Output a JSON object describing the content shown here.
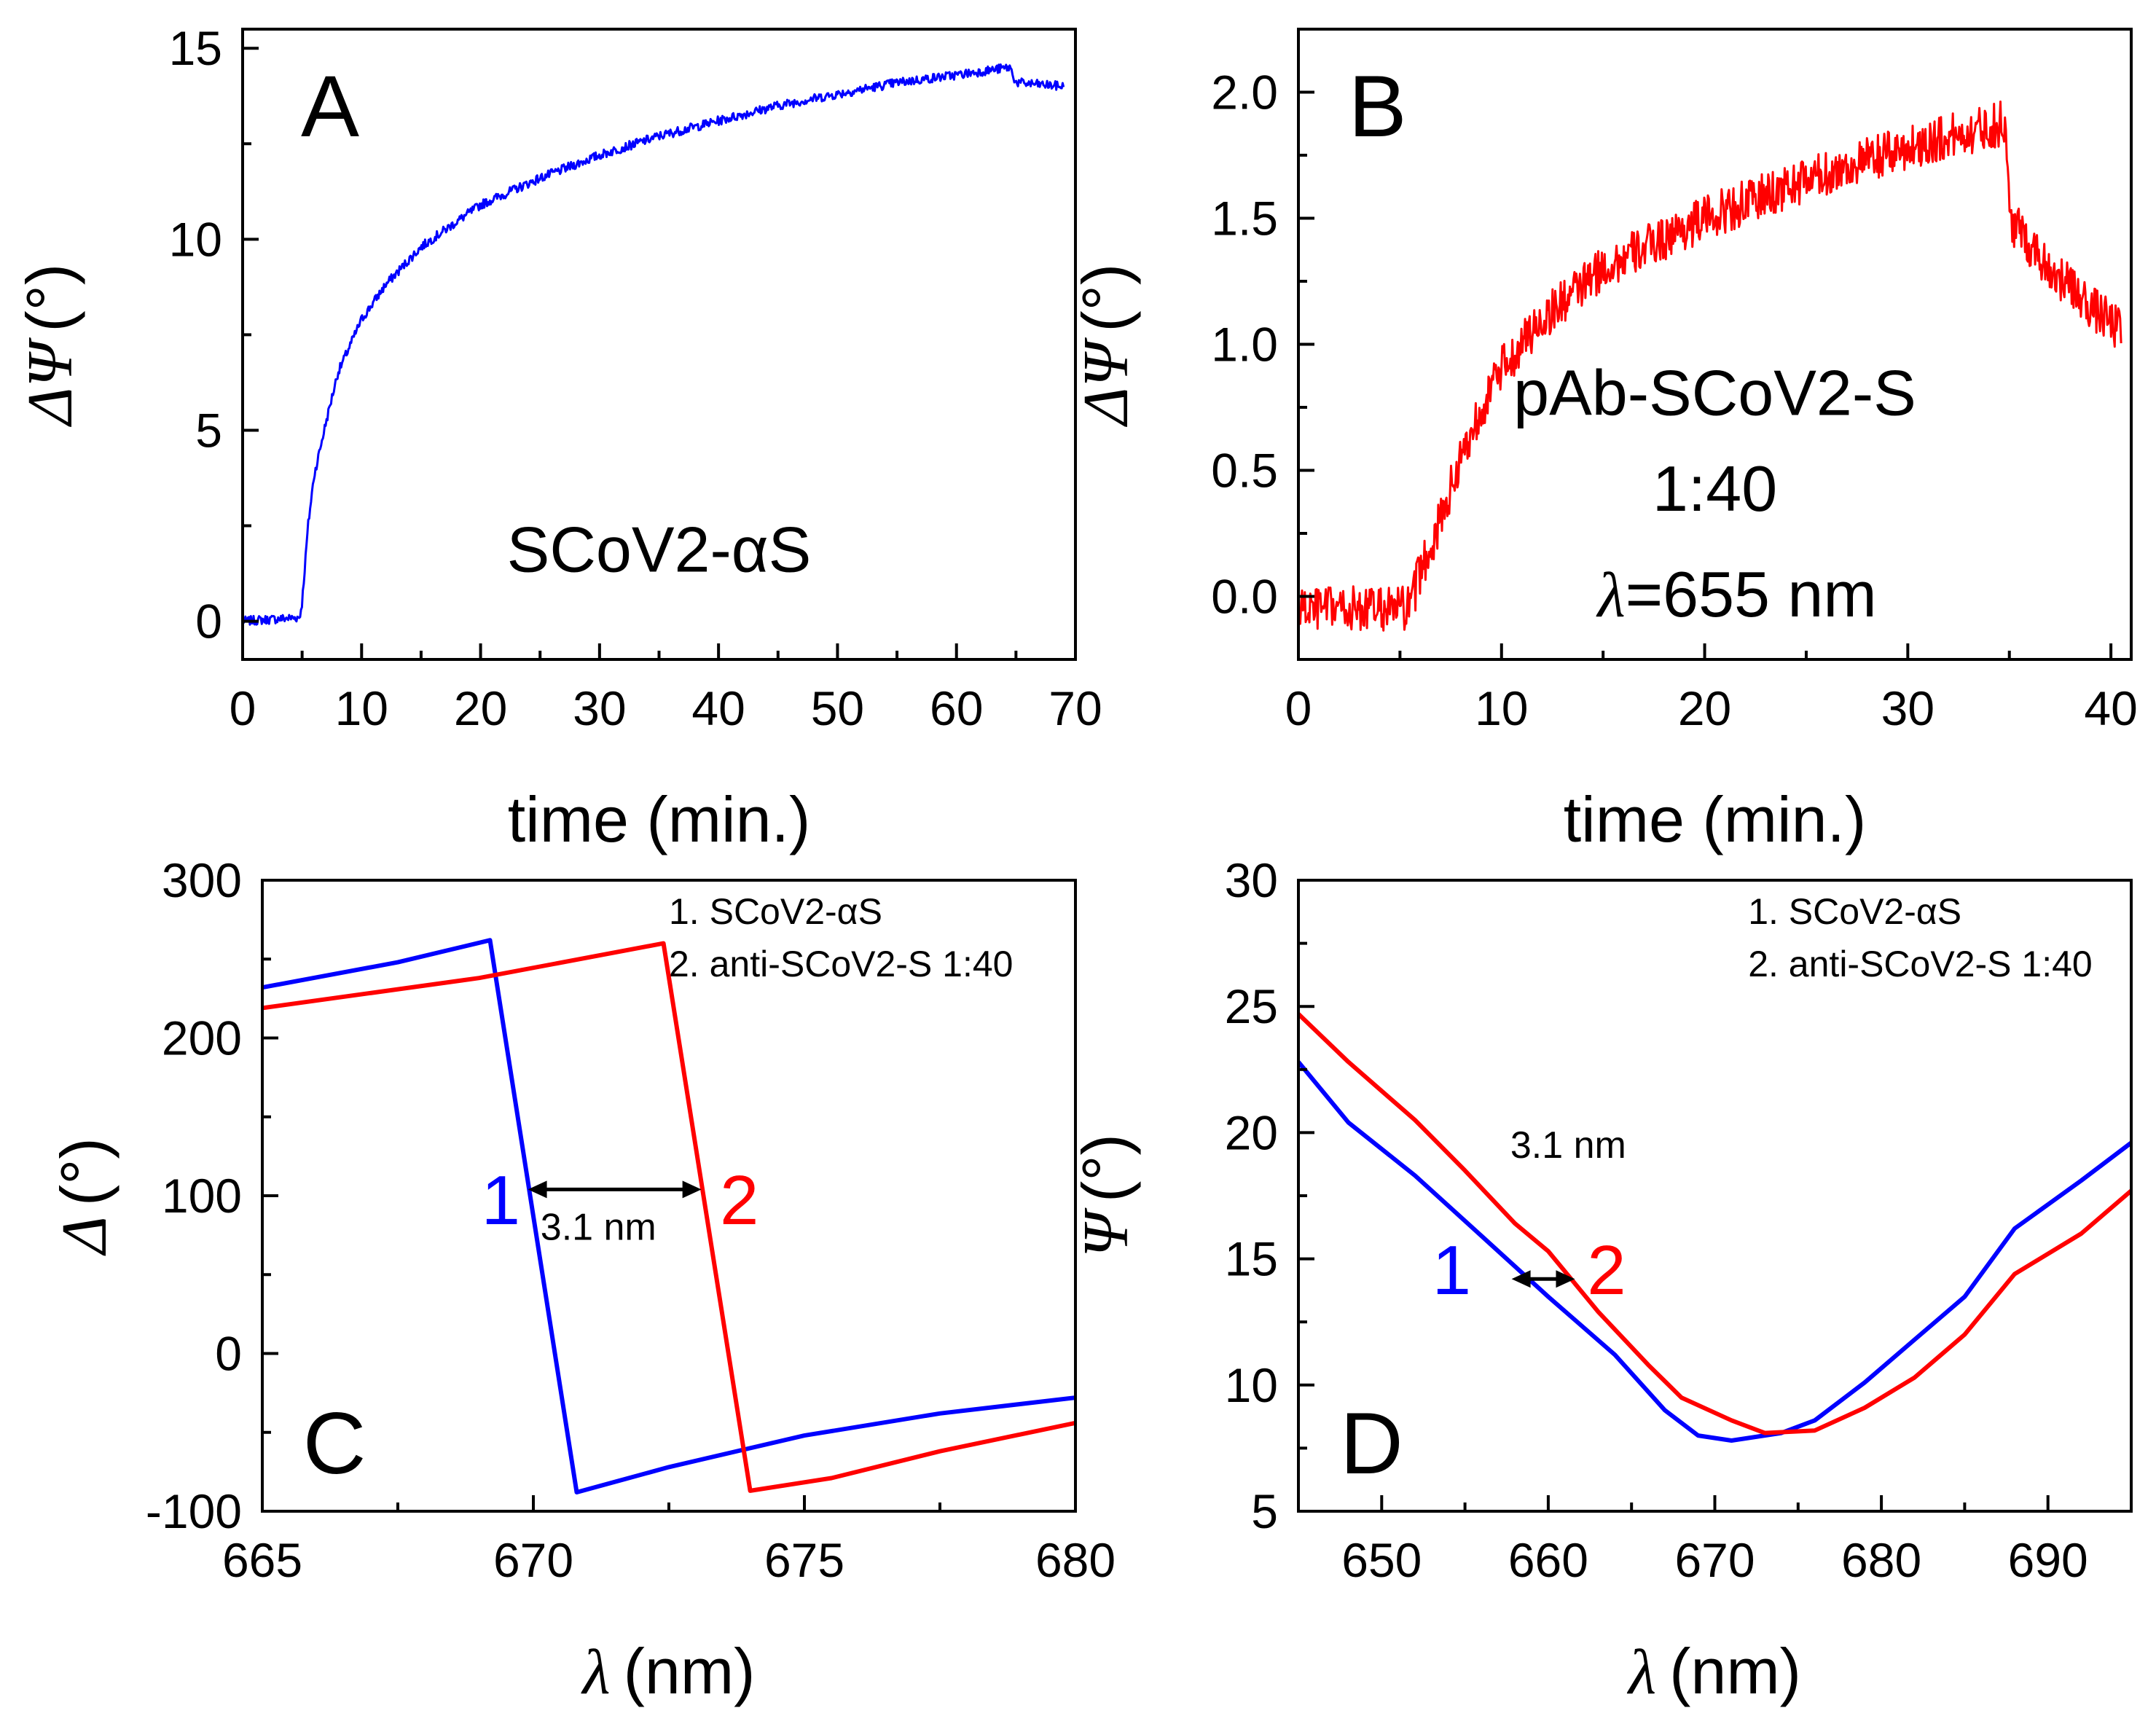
{
  "colors": {
    "blue": "#0000ff",
    "red": "#ff0000",
    "axis": "#000000"
  },
  "chart_data": [
    {
      "id": "A",
      "type": "line",
      "panel_label": "A",
      "xlabel": "time (min.)",
      "ylabel_symbol": "ΔΨ",
      "ylabel_unit": "(°)",
      "xlim": [
        0,
        70
      ],
      "ylim": [
        -1,
        15.5
      ],
      "xticks": [
        0,
        10,
        20,
        30,
        40,
        50,
        60,
        70
      ],
      "yticks": [
        0,
        5,
        10,
        15
      ],
      "annotations": [
        {
          "text": "SCoV2-αS",
          "x": 35,
          "y": 1.3
        }
      ],
      "series": [
        {
          "name": "SCoV2-αS",
          "color": "#0000ff",
          "noise": 0.12,
          "points": [
            [
              0,
              0
            ],
            [
              4.8,
              0.1
            ],
            [
              5,
              0.5
            ],
            [
              5.5,
              2.5
            ],
            [
              6,
              3.8
            ],
            [
              7,
              5.2
            ],
            [
              8,
              6.5
            ],
            [
              10,
              7.9
            ],
            [
              12,
              8.8
            ],
            [
              15,
              9.8
            ],
            [
              20,
              10.9
            ],
            [
              25,
              11.6
            ],
            [
              30,
              12.2
            ],
            [
              35,
              12.7
            ],
            [
              40,
              13.1
            ],
            [
              45,
              13.5
            ],
            [
              50,
              13.8
            ],
            [
              55,
              14.1
            ],
            [
              60,
              14.3
            ],
            [
              64.5,
              14.5
            ],
            [
              65,
              14.1
            ],
            [
              69,
              14.0
            ]
          ]
        }
      ]
    },
    {
      "id": "B",
      "type": "line",
      "panel_label": "B",
      "xlabel": "time (min.)",
      "ylabel_symbol": "ΔΨ",
      "ylabel_unit": "(°)",
      "xlim": [
        0,
        41
      ],
      "ylim": [
        -0.25,
        2.25
      ],
      "xticks": [
        0,
        10,
        20,
        30,
        40
      ],
      "yticks": [
        0.0,
        0.5,
        1.0,
        1.5,
        2.0
      ],
      "ytick_decimals": 1,
      "annotations": [
        {
          "text": "pAb-SCoV2-S",
          "x": 20.5,
          "y": 0.72
        },
        {
          "text": "1:40",
          "x": 20.5,
          "y": 0.34
        },
        {
          "text": "=655 nm",
          "x": 21.6,
          "y": -0.08,
          "prefix_italic": "λ"
        }
      ],
      "series": [
        {
          "name": "pAb-SCoV2-S 1:40",
          "color": "#ff0000",
          "noise": 0.09,
          "points": [
            [
              0,
              -0.05
            ],
            [
              5.5,
              -0.05
            ],
            [
              6,
              0.1
            ],
            [
              7,
              0.3
            ],
            [
              8,
              0.55
            ],
            [
              9,
              0.75
            ],
            [
              10,
              0.9
            ],
            [
              12,
              1.1
            ],
            [
              15,
              1.3
            ],
            [
              20,
              1.5
            ],
            [
              25,
              1.65
            ],
            [
              30,
              1.78
            ],
            [
              34.8,
              1.88
            ],
            [
              35,
              1.5
            ],
            [
              37,
              1.3
            ],
            [
              39,
              1.15
            ],
            [
              40.5,
              1.05
            ]
          ]
        }
      ]
    },
    {
      "id": "C",
      "type": "line",
      "panel_label": "C",
      "xlabel": "(nm)",
      "xlabel_symbol": "λ",
      "ylabel_symbol": "Δ",
      "ylabel_unit": "(°)",
      "xlim": [
        665,
        680
      ],
      "ylim": [
        -100,
        300
      ],
      "xticks": [
        665,
        670,
        675,
        680
      ],
      "yticks": [
        -100,
        0,
        100,
        200,
        300
      ],
      "legend": [
        "1. SCoV2-αS",
        "2. anti-SCoV2-S 1:40"
      ],
      "curve_labels": [
        {
          "text": "1",
          "x": 669.4,
          "y": 82,
          "color": "#0000ff"
        },
        {
          "text": "2",
          "x": 673.8,
          "y": 82,
          "color": "#ff0000"
        }
      ],
      "shift_label": {
        "text": "3.1 nm",
        "x": 671.2,
        "y": 72
      },
      "shift_arrow": {
        "x1": 669.9,
        "x2": 673.1,
        "y": 104
      },
      "series": [
        {
          "name": "1. SCoV2-αS",
          "color": "#0000ff",
          "points": [
            [
              665,
              232
            ],
            [
              667.5,
              248
            ],
            [
              669.2,
              262
            ],
            [
              670.8,
              -88
            ],
            [
              672.5,
              -72
            ],
            [
              675,
              -52
            ],
            [
              677.5,
              -38
            ],
            [
              680,
              -28
            ]
          ]
        },
        {
          "name": "2. anti-SCoV2-S 1:40",
          "color": "#ff0000",
          "points": [
            [
              665,
              219
            ],
            [
              669,
              238
            ],
            [
              672.4,
              260
            ],
            [
              674,
              -87
            ],
            [
              675.5,
              -79
            ],
            [
              677.5,
              -62
            ],
            [
              680,
              -44
            ]
          ]
        }
      ]
    },
    {
      "id": "D",
      "type": "line",
      "panel_label": "D",
      "xlabel": "(nm)",
      "xlabel_symbol": "λ",
      "ylabel_symbol": "Ψ",
      "ylabel_unit": "(°)",
      "xlim": [
        645,
        695
      ],
      "ylim": [
        5,
        30
      ],
      "xticks": [
        650,
        660,
        670,
        680,
        690
      ],
      "yticks": [
        5,
        10,
        15,
        20,
        25,
        30
      ],
      "legend": [
        "1. SCoV2-αS",
        "2. anti-SCoV2-S 1:40"
      ],
      "curve_labels": [
        {
          "text": "1",
          "x": 654.2,
          "y": 13.6,
          "color": "#0000ff"
        },
        {
          "text": "2",
          "x": 663.5,
          "y": 13.6,
          "color": "#ff0000"
        }
      ],
      "shift_label": {
        "text": "3.1 nm",
        "x": 661.2,
        "y": 19.0
      },
      "shift_arrow": {
        "x1": 657.8,
        "x2": 661.6,
        "y": 14.2
      },
      "series": [
        {
          "name": "1. SCoV2-αS",
          "color": "#0000ff",
          "points": [
            [
              645,
              22.8
            ],
            [
              648,
              20.4
            ],
            [
              652,
              18.3
            ],
            [
              656,
              15.9
            ],
            [
              660,
              13.5
            ],
            [
              664,
              11.2
            ],
            [
              667,
              9.0
            ],
            [
              669,
              8.0
            ],
            [
              671,
              7.8
            ],
            [
              674,
              8.1
            ],
            [
              676,
              8.6
            ],
            [
              679,
              10.1
            ],
            [
              682,
              11.8
            ],
            [
              685,
              13.5
            ],
            [
              688,
              16.2
            ],
            [
              692,
              18.1
            ],
            [
              695,
              19.6
            ]
          ]
        },
        {
          "name": "2. anti-SCoV2-S 1:40",
          "color": "#ff0000",
          "points": [
            [
              645,
              24.7
            ],
            [
              648,
              22.8
            ],
            [
              652,
              20.5
            ],
            [
              655,
              18.5
            ],
            [
              658,
              16.4
            ],
            [
              660,
              15.3
            ],
            [
              663,
              12.9
            ],
            [
              666,
              10.8
            ],
            [
              668,
              9.5
            ],
            [
              671,
              8.6
            ],
            [
              673,
              8.1
            ],
            [
              676,
              8.2
            ],
            [
              679,
              9.1
            ],
            [
              682,
              10.3
            ],
            [
              685,
              12.0
            ],
            [
              688,
              14.4
            ],
            [
              692,
              16.0
            ],
            [
              695,
              17.7
            ]
          ]
        }
      ]
    }
  ]
}
